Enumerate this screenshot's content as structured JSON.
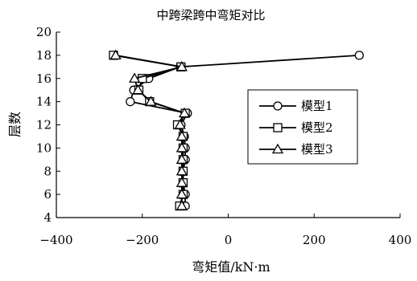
{
  "chart_data": {
    "type": "line",
    "title": "中跨梁跨中弯矩对比",
    "xlabel": "弯矩值/kN·m",
    "ylabel": "层数",
    "xlim": [
      -400,
      400
    ],
    "ylim": [
      4,
      20
    ],
    "x_ticks": [
      "−400",
      "−200",
      "0",
      "200",
      "400"
    ],
    "y_ticks": [
      "4",
      "6",
      "8",
      "10",
      "12",
      "14",
      "16",
      "18",
      "20"
    ],
    "grid": false,
    "legend_position": "right",
    "series": [
      {
        "name": "模型1",
        "marker": "circle",
        "points": [
          {
            "x": -100,
            "y": 5
          },
          {
            "x": -100,
            "y": 6
          },
          {
            "x": -105,
            "y": 7
          },
          {
            "x": -105,
            "y": 8
          },
          {
            "x": -100,
            "y": 9
          },
          {
            "x": -100,
            "y": 10
          },
          {
            "x": -102,
            "y": 11
          },
          {
            "x": -110,
            "y": 12
          },
          {
            "x": -95,
            "y": 13
          },
          {
            "x": -228,
            "y": 14
          },
          {
            "x": -220,
            "y": 15
          },
          {
            "x": -185,
            "y": 16
          },
          {
            "x": -112,
            "y": 17
          },
          {
            "x": 305,
            "y": 18
          }
        ]
      },
      {
        "name": "模型2",
        "marker": "square",
        "points": [
          {
            "x": -113,
            "y": 5
          },
          {
            "x": -105,
            "y": 6
          },
          {
            "x": -105,
            "y": 7
          },
          {
            "x": -105,
            "y": 8
          },
          {
            "x": -105,
            "y": 9
          },
          {
            "x": -105,
            "y": 10
          },
          {
            "x": -105,
            "y": 11
          },
          {
            "x": -118,
            "y": 12
          },
          {
            "x": -100,
            "y": 13
          },
          {
            "x": -183,
            "y": 14
          },
          {
            "x": -208,
            "y": 15
          },
          {
            "x": -200,
            "y": 16
          },
          {
            "x": -110,
            "y": 17
          },
          {
            "x": -267,
            "y": 18
          }
        ]
      },
      {
        "name": "模型3",
        "marker": "triangle",
        "points": [
          {
            "x": -108,
            "y": 5
          },
          {
            "x": -108,
            "y": 6
          },
          {
            "x": -108,
            "y": 7
          },
          {
            "x": -108,
            "y": 8
          },
          {
            "x": -108,
            "y": 9
          },
          {
            "x": -108,
            "y": 10
          },
          {
            "x": -108,
            "y": 11
          },
          {
            "x": -112,
            "y": 12
          },
          {
            "x": -102,
            "y": 13
          },
          {
            "x": -180,
            "y": 14
          },
          {
            "x": -210,
            "y": 15
          },
          {
            "x": -218,
            "y": 16
          },
          {
            "x": -108,
            "y": 17
          },
          {
            "x": -262,
            "y": 18
          }
        ]
      }
    ]
  }
}
